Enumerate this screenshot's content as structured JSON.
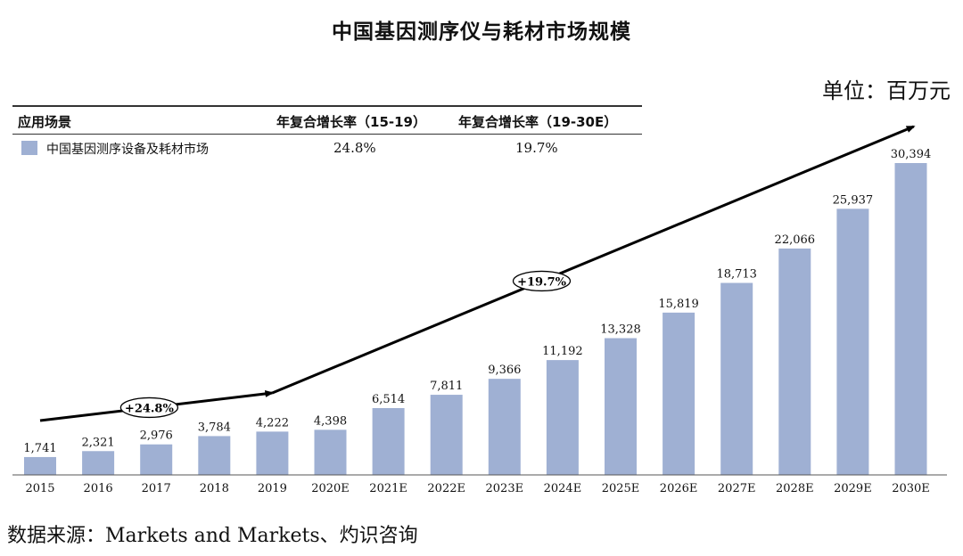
{
  "chart_data": {
    "type": "bar",
    "title": "中国基因测序仪与耗材市场规模",
    "unit_label": "单位：百万元",
    "categories": [
      "2015",
      "2016",
      "2017",
      "2018",
      "2019",
      "2020E",
      "2021E",
      "2022E",
      "2023E",
      "2024E",
      "2025E",
      "2026E",
      "2027E",
      "2028E",
      "2029E",
      "2030E"
    ],
    "values": [
      1741,
      2321,
      2976,
      3784,
      4222,
      4398,
      6514,
      7811,
      9366,
      11192,
      13328,
      15819,
      18713,
      22066,
      25937,
      30394
    ],
    "value_labels": [
      "1,741",
      "2,321",
      "2,976",
      "3,784",
      "4,222",
      "4,398",
      "6,514",
      "7,811",
      "9,366",
      "11,192",
      "13,328",
      "15,819",
      "18,713",
      "22,066",
      "25,937",
      "30,394"
    ],
    "ylim": [
      0,
      30394
    ],
    "bar_color": "#9fb0d3",
    "annotations": [
      {
        "label": "+24.8%",
        "from_year": "2015",
        "to_year": "2019"
      },
      {
        "label": "+19.7%",
        "from_year": "2019",
        "to_year": "2030E"
      }
    ],
    "table": {
      "headers": [
        "应用场景",
        "年复合增长率（15-19）",
        "年复合增长率（19-30E）"
      ],
      "rows": [
        {
          "legend": "中国基因测序设备及耗材市场",
          "cagr_15_19": "24.8%",
          "cagr_19_30": "19.7%"
        }
      ]
    },
    "source": "数据来源：Markets and Markets、灼识咨询"
  }
}
